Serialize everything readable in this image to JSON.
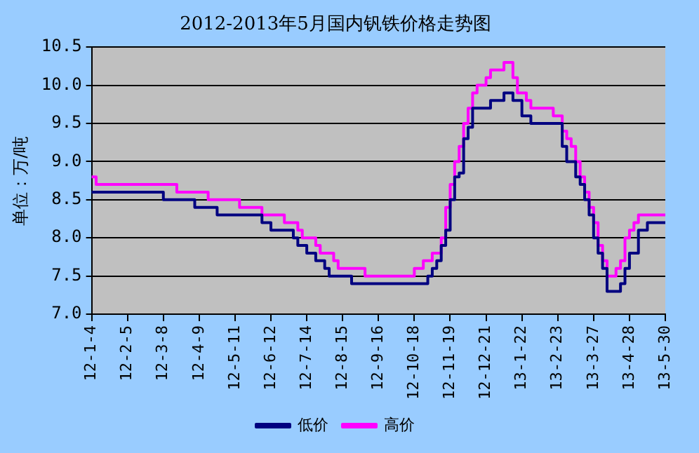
{
  "chart_data": {
    "type": "step",
    "title": "2012-2013年5月国内钒铁价格走势图",
    "ylabel": "单位：万/吨",
    "categories": [
      "12-1-4",
      null,
      null,
      null,
      null,
      null,
      null,
      null,
      "12-2-5",
      null,
      null,
      null,
      null,
      null,
      null,
      null,
      "12-3-8",
      null,
      null,
      null,
      null,
      null,
      null,
      null,
      "12-4-9",
      null,
      null,
      null,
      null,
      null,
      null,
      null,
      "12-5-11",
      null,
      null,
      null,
      null,
      null,
      null,
      null,
      "12-6-12",
      null,
      null,
      null,
      null,
      null,
      null,
      null,
      "12-7-14",
      null,
      null,
      null,
      null,
      null,
      null,
      null,
      "12-8-15",
      null,
      null,
      null,
      null,
      null,
      null,
      null,
      "12-9-16",
      null,
      null,
      null,
      null,
      null,
      null,
      null,
      "12-10-18",
      null,
      null,
      null,
      null,
      null,
      null,
      null,
      "12-11-19",
      null,
      null,
      null,
      null,
      null,
      null,
      null,
      "12-12-21",
      null,
      null,
      null,
      null,
      null,
      null,
      null,
      "13-1-22",
      null,
      null,
      null,
      null,
      null,
      null,
      null,
      "13-2-23",
      null,
      null,
      null,
      null,
      null,
      null,
      null,
      "13-3-27",
      null,
      null,
      null,
      null,
      null,
      null,
      null,
      "13-4-28",
      null,
      null,
      null,
      null,
      null,
      null,
      null,
      "13-5-30"
    ],
    "series": [
      {
        "name": "低价",
        "color": "#000080",
        "values": [
          8.6,
          8.6,
          8.6,
          8.6,
          8.6,
          8.6,
          8.6,
          8.6,
          8.6,
          8.6,
          8.6,
          8.6,
          8.6,
          8.6,
          8.6,
          8.6,
          8.6,
          8.5,
          8.5,
          8.5,
          8.5,
          8.5,
          8.5,
          8.5,
          8.4,
          8.4,
          8.4,
          8.4,
          8.4,
          8.3,
          8.3,
          8.3,
          8.3,
          8.3,
          8.3,
          8.3,
          8.3,
          8.3,
          8.3,
          8.2,
          8.2,
          8.1,
          8.1,
          8.1,
          8.1,
          8.1,
          8.0,
          7.9,
          7.9,
          7.8,
          7.8,
          7.7,
          7.7,
          7.6,
          7.5,
          7.5,
          7.5,
          7.5,
          7.5,
          7.4,
          7.4,
          7.4,
          7.4,
          7.4,
          7.4,
          7.4,
          7.4,
          7.4,
          7.4,
          7.4,
          7.4,
          7.4,
          7.4,
          7.4,
          7.4,
          7.4,
          7.5,
          7.6,
          7.7,
          7.9,
          8.1,
          8.5,
          8.8,
          8.85,
          9.3,
          9.45,
          9.7,
          9.7,
          9.7,
          9.7,
          9.8,
          9.8,
          9.8,
          9.9,
          9.9,
          9.8,
          9.8,
          9.6,
          9.6,
          9.5,
          9.5,
          9.5,
          9.5,
          9.5,
          9.5,
          9.5,
          9.2,
          9.0,
          9.0,
          8.8,
          8.7,
          8.5,
          8.3,
          8.0,
          7.8,
          7.6,
          7.3,
          7.3,
          7.3,
          7.4,
          7.6,
          7.8,
          7.8,
          8.1,
          8.1,
          8.2,
          8.2,
          8.2,
          8.2
        ]
      },
      {
        "name": "高价",
        "color": "#ff00ff",
        "values": [
          8.8,
          8.8,
          8.7,
          8.7,
          8.7,
          8.7,
          8.7,
          8.7,
          8.7,
          8.7,
          8.7,
          8.7,
          8.7,
          8.7,
          8.7,
          8.7,
          8.7,
          8.7,
          8.7,
          8.7,
          8.6,
          8.6,
          8.6,
          8.6,
          8.6,
          8.6,
          8.6,
          8.5,
          8.5,
          8.5,
          8.5,
          8.5,
          8.5,
          8.5,
          8.4,
          8.4,
          8.4,
          8.4,
          8.4,
          8.3,
          8.3,
          8.3,
          8.3,
          8.3,
          8.2,
          8.2,
          8.2,
          8.1,
          8.0,
          8.0,
          8.0,
          7.9,
          7.8,
          7.8,
          7.8,
          7.7,
          7.6,
          7.6,
          7.6,
          7.6,
          7.6,
          7.6,
          7.5,
          7.5,
          7.5,
          7.5,
          7.5,
          7.5,
          7.5,
          7.5,
          7.5,
          7.5,
          7.5,
          7.6,
          7.6,
          7.7,
          7.7,
          7.8,
          7.8,
          8.0,
          8.4,
          8.7,
          9.0,
          9.2,
          9.5,
          9.7,
          9.9,
          10.0,
          10.0,
          10.1,
          10.2,
          10.2,
          10.2,
          10.3,
          10.3,
          10.1,
          9.9,
          9.9,
          9.8,
          9.7,
          9.7,
          9.7,
          9.7,
          9.7,
          9.6,
          9.6,
          9.4,
          9.3,
          9.2,
          9.0,
          8.8,
          8.6,
          8.4,
          8.2,
          7.9,
          7.7,
          7.5,
          7.5,
          7.6,
          7.7,
          8.0,
          8.1,
          8.2,
          8.3,
          8.3,
          8.3,
          8.3,
          8.3,
          8.3
        ]
      }
    ],
    "ylim": [
      7.0,
      10.5
    ],
    "yticks": [
      {
        "value": 7,
        "label": "7.0"
      },
      7.5,
      {
        "value": 8,
        "label": "8.0"
      },
      8.5,
      {
        "value": 9,
        "label": "9.0"
      },
      9.5,
      {
        "value": 10,
        "label": "10.0"
      },
      10.5
    ],
    "grid": "y",
    "legend": "bottom",
    "line_style": "solid",
    "marker": "none"
  }
}
